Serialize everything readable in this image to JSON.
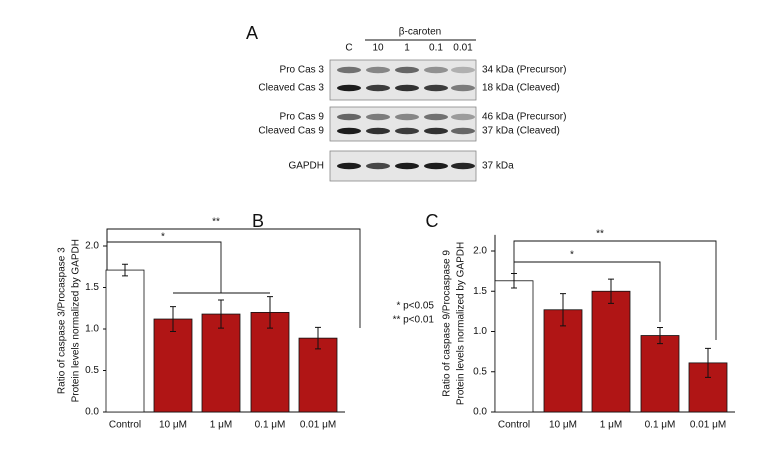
{
  "panel_a": {
    "panel": "A",
    "treatment": "β-caroten",
    "lanes": [
      "C",
      "10",
      "1",
      "0.1",
      "0.01"
    ],
    "blots": [
      {
        "left": [
          "Pro Cas 3",
          "Cleaved Cas 3"
        ],
        "right": [
          "34 kDa (Precursor)",
          "18 kDa (Cleaved)"
        ]
      },
      {
        "left": [
          "Pro Cas 9",
          "Cleaved Cas 9"
        ],
        "right": [
          "46 kDa (Precursor)",
          "37 kDa (Cleaved)"
        ]
      },
      {
        "left": [
          "GAPDH"
        ],
        "right": [
          "37 kDa"
        ]
      }
    ]
  },
  "chart_data": [
    {
      "type": "bar",
      "panel": "B",
      "ylabel": [
        "Ratio of caspase 3/Procaspase 3",
        "Protein levels normalized by GAPDH"
      ],
      "categories": [
        "Control",
        "10 μM",
        "1 μM",
        "0.1 μM",
        "0.01 μM"
      ],
      "values": [
        1.71,
        1.12,
        1.18,
        1.2,
        0.89
      ],
      "errors": [
        0.07,
        0.15,
        0.17,
        0.19,
        0.13
      ],
      "colors": [
        "#ffffff",
        "#b01515",
        "#b01515",
        "#b01515",
        "#b01515"
      ],
      "ylim": [
        0,
        2.2
      ],
      "yticks": [
        {
          "value": 0,
          "label": "0.0"
        },
        0.5,
        {
          "value": 1,
          "label": "1.0"
        },
        1.5,
        {
          "value": 2,
          "label": "2.0"
        }
      ],
      "annotations": [
        "**",
        "*"
      ],
      "significance_legend": [
        "* p<0.05",
        "** p<0.01"
      ]
    },
    {
      "type": "bar",
      "panel": "C",
      "ylabel": [
        "Ratio of caspase 9/Procaspase 9",
        "Protein levels normalized by GAPDH"
      ],
      "categories": [
        "Control",
        "10 μM",
        "1 μM",
        "0.1 μM",
        "0.01 μM"
      ],
      "values": [
        1.63,
        1.27,
        1.5,
        0.95,
        0.61
      ],
      "errors": [
        0.09,
        0.2,
        0.15,
        0.1,
        0.18
      ],
      "colors": [
        "#ffffff",
        "#b01515",
        "#b01515",
        "#b01515",
        "#b01515"
      ],
      "ylim": [
        0,
        2.2
      ],
      "yticks": [
        {
          "value": 0,
          "label": "0.0"
        },
        0.5,
        {
          "value": 1,
          "label": "1.0"
        },
        1.5,
        {
          "value": 2,
          "label": "2.0"
        }
      ],
      "annotations": [
        "**",
        "*"
      ]
    }
  ]
}
